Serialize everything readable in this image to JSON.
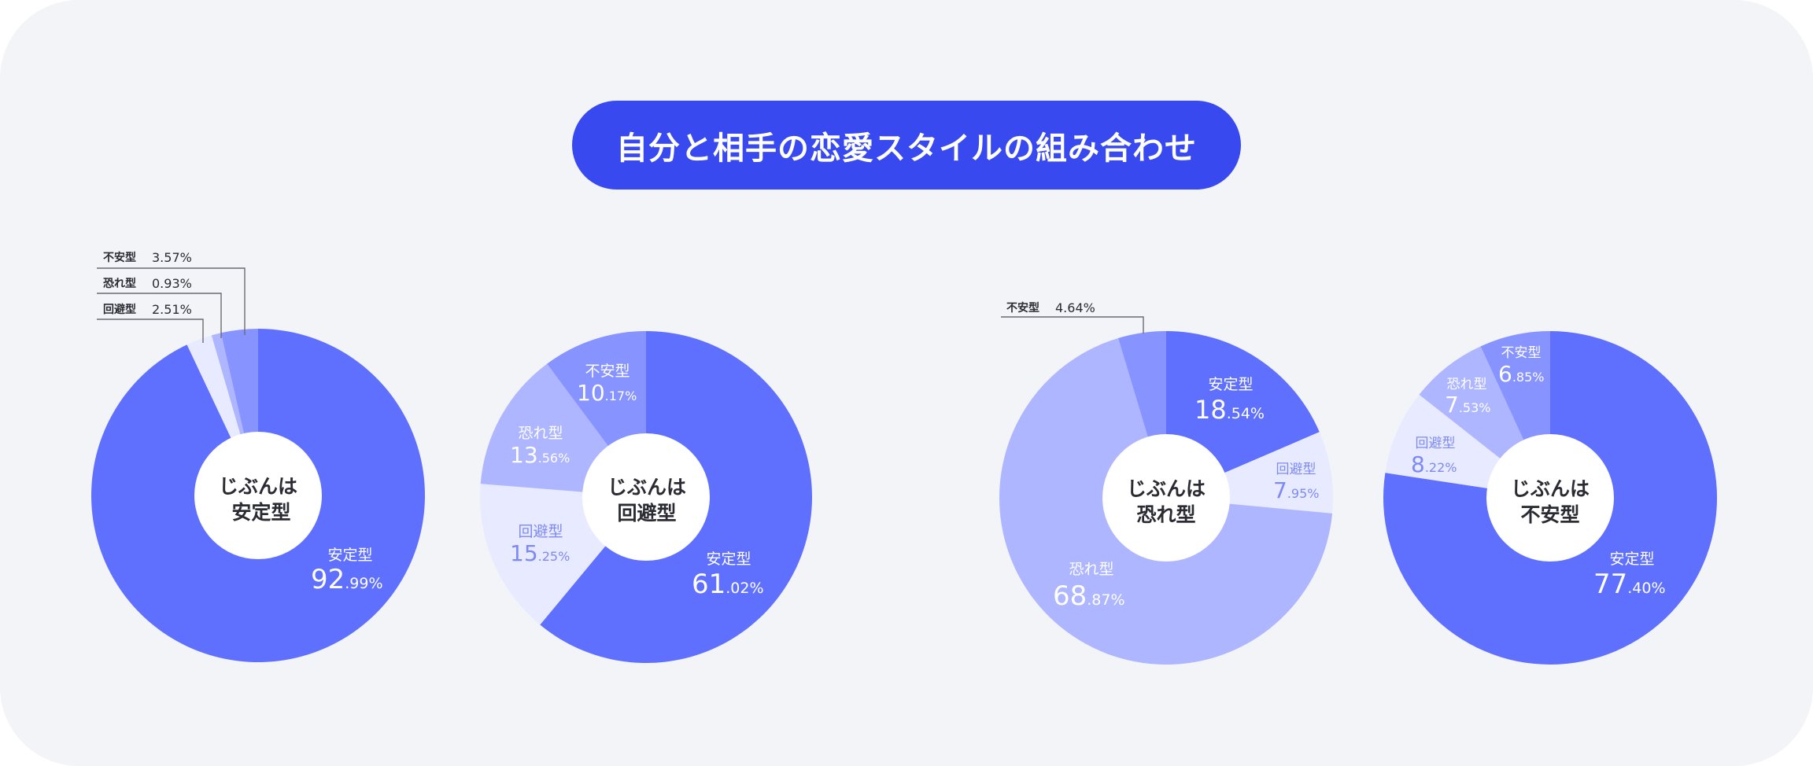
{
  "title": "自分と相手の恋愛スタイルの組み合わせ",
  "colors": {
    "background": "#f3f4f8",
    "title_pill": "#3849f0",
    "安定型": "#5f70ff",
    "回避型": "#e8ebff",
    "恐れ型": "#adb6ff",
    "不安型": "#8793ff",
    "center_text": "#2b2b33",
    "avoidant_label_text": "#7d89f5"
  },
  "charts": [
    {
      "center_line1": "じぶんは",
      "center_line2": "安定型",
      "slices": [
        {
          "name": "安定型",
          "int": "92",
          "dec": ".99%"
        },
        {
          "name": "回避型",
          "int": "2",
          "dec": ".51%"
        },
        {
          "name": "恐れ型",
          "int": "0",
          "dec": ".93%"
        },
        {
          "name": "不安型",
          "int": "3",
          "dec": ".57%"
        }
      ],
      "callouts": [
        {
          "name": "不安型",
          "value": "3.57%"
        },
        {
          "name": "恐れ型",
          "value": "0.93%"
        },
        {
          "name": "回避型",
          "value": "2.51%"
        }
      ]
    },
    {
      "center_line1": "じぶんは",
      "center_line2": "回避型",
      "slices": [
        {
          "name": "安定型",
          "int": "61",
          "dec": ".02%"
        },
        {
          "name": "回避型",
          "int": "15",
          "dec": ".25%"
        },
        {
          "name": "恐れ型",
          "int": "13",
          "dec": ".56%"
        },
        {
          "name": "不安型",
          "int": "10",
          "dec": ".17%"
        }
      ]
    },
    {
      "center_line1": "じぶんは",
      "center_line2": "恐れ型",
      "slices": [
        {
          "name": "安定型",
          "int": "18",
          "dec": ".54%"
        },
        {
          "name": "回避型",
          "int": "7",
          "dec": ".95%"
        },
        {
          "name": "恐れ型",
          "int": "68",
          "dec": ".87%"
        },
        {
          "name": "不安型",
          "int": "4",
          "dec": ".64%"
        }
      ],
      "callouts": [
        {
          "name": "不安型",
          "value": "4.64%"
        }
      ]
    },
    {
      "center_line1": "じぶんは",
      "center_line2": "不安型",
      "slices": [
        {
          "name": "安定型",
          "int": "77",
          "dec": ".40%"
        },
        {
          "name": "回避型",
          "int": "8",
          "dec": ".22%"
        },
        {
          "name": "恐れ型",
          "int": "7",
          "dec": ".53%"
        },
        {
          "name": "不安型",
          "int": "6",
          "dec": ".85%"
        }
      ]
    }
  ],
  "chart_data": [
    {
      "type": "pie",
      "title": "じぶんは安定型",
      "categories": [
        "安定型",
        "回避型",
        "恐れ型",
        "不安型"
      ],
      "values": [
        92.99,
        2.51,
        0.93,
        3.57
      ],
      "unit": "%"
    },
    {
      "type": "pie",
      "title": "じぶんは回避型",
      "categories": [
        "安定型",
        "回避型",
        "恐れ型",
        "不安型"
      ],
      "values": [
        61.02,
        15.25,
        13.56,
        10.17
      ],
      "unit": "%"
    },
    {
      "type": "pie",
      "title": "じぶんは恐れ型",
      "categories": [
        "安定型",
        "回避型",
        "恐れ型",
        "不安型"
      ],
      "values": [
        18.54,
        7.95,
        68.87,
        4.64
      ],
      "unit": "%"
    },
    {
      "type": "pie",
      "title": "じぶんは不安型",
      "categories": [
        "安定型",
        "回避型",
        "恐れ型",
        "不安型"
      ],
      "values": [
        77.4,
        8.22,
        7.53,
        6.85
      ],
      "unit": "%"
    }
  ]
}
